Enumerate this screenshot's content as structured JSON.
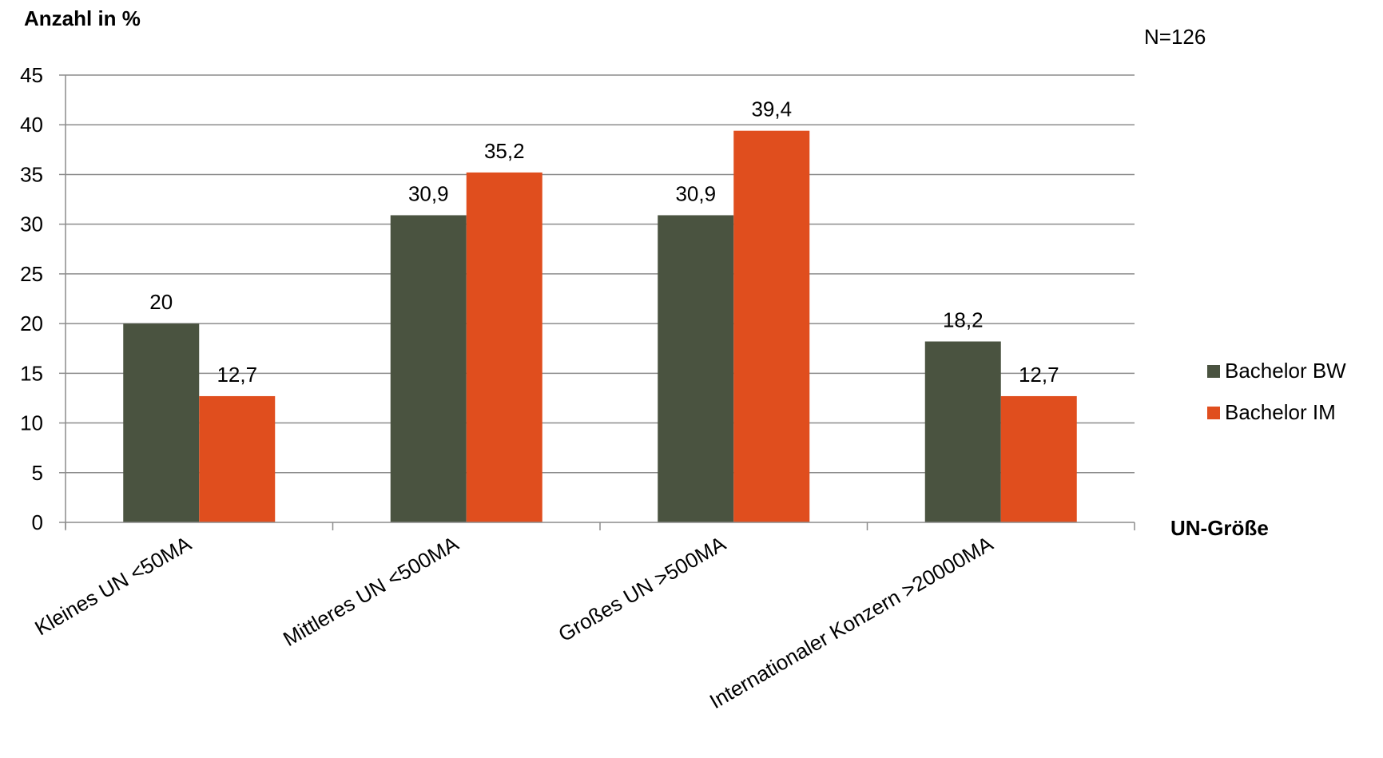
{
  "chart_data": {
    "type": "bar",
    "categories": [
      "Kleines UN <50MA",
      "Mittleres UN <500MA",
      "Großes UN >500MA",
      "Internationaler Konzern >20000MA"
    ],
    "series": [
      {
        "name": "Bachelor BW",
        "color": "#4a5340",
        "values": [
          20,
          30.9,
          30.9,
          18.2
        ],
        "labels": [
          "20",
          "30,9",
          "30,9",
          "18,2"
        ]
      },
      {
        "name": "Bachelor IM",
        "color": "#e04e1e",
        "values": [
          12.7,
          35.2,
          39.4,
          12.7
        ],
        "labels": [
          "12,7",
          "35,2",
          "39,4",
          "12,7"
        ]
      }
    ],
    "ylabel": "Anzahl in %",
    "xlabel": "UN-Größe",
    "note": "N=126",
    "ylim": [
      0,
      45
    ],
    "yticks": [
      0,
      5,
      10,
      15,
      20,
      25,
      30,
      35,
      40,
      45
    ],
    "grid": true,
    "legend_position": "right"
  }
}
